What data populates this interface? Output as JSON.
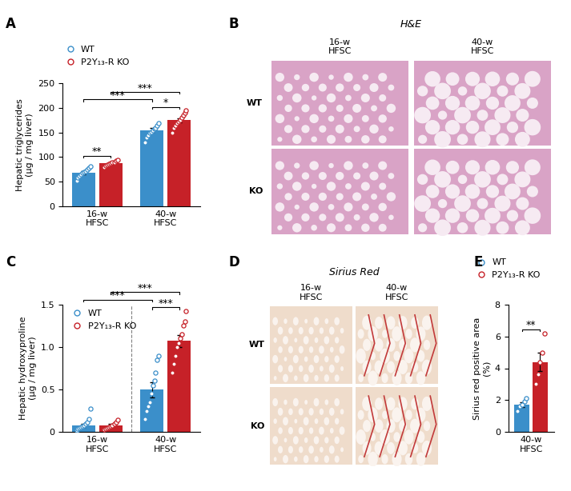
{
  "chart_data": [
    {
      "panel": "A",
      "type": "bar",
      "categories": [
        "16-w\nHFSC",
        "40-w\nHFSC"
      ],
      "y_label": "Hepatic triglycerides\n(μg / mg liver)",
      "ylim": [
        0,
        250
      ],
      "yticks": [
        0,
        50,
        100,
        150,
        200,
        250
      ],
      "legend": "upper left",
      "series": [
        {
          "name": "WT",
          "color": "#3b8fca",
          "values": [
            68,
            155
          ],
          "errors": [
            3,
            4
          ],
          "points": [
            [
              52,
              58,
              62,
              65,
              68,
              70,
              72,
              75,
              78,
              82
            ],
            [
              130,
              140,
              145,
              150,
              152,
              155,
              158,
              160,
              165,
              170
            ]
          ]
        },
        {
          "name": "P2Y₁₃-R KO",
          "color": "#c62128",
          "values": [
            88,
            175
          ],
          "errors": [
            2,
            4
          ],
          "points": [
            [
              80,
              83,
              85,
              86,
              88,
              89,
              90,
              92,
              95
            ],
            [
              150,
              160,
              165,
              170,
              172,
              175,
              180,
              185,
              190,
              195
            ]
          ]
        }
      ],
      "comparisons": [
        {
          "groups": [
            [
              "16-w\nHFSC",
              "WT"
            ],
            [
              "16-w\nHFSC",
              "P2Y₁₃-R KO"
            ]
          ],
          "label": "**"
        },
        {
          "groups": [
            [
              "40-w\nHFSC",
              "WT"
            ],
            [
              "40-w\nHFSC",
              "P2Y₁₃-R KO"
            ]
          ],
          "label": "*"
        },
        {
          "groups": [
            [
              "16-w\nHFSC",
              "WT"
            ],
            [
              "40-w\nHFSC",
              "WT"
            ]
          ],
          "label": "***"
        },
        {
          "groups": [
            [
              "16-w\nHFSC",
              "P2Y₁₃-R KO"
            ],
            [
              "40-w\nHFSC",
              "P2Y₁₃-R KO"
            ]
          ],
          "label": "***"
        }
      ]
    },
    {
      "panel": "B",
      "type": "image",
      "title": "H&E",
      "columns": [
        "16-w\nHFSC",
        "40-w\nHFSC"
      ],
      "rows": [
        "WT",
        "KO"
      ]
    },
    {
      "panel": "C",
      "type": "bar",
      "categories": [
        "16-w\nHFSC",
        "40-w\nHFSC"
      ],
      "y_label": "Hepatic hydroxyproline\n(μg / mg liver)",
      "ylim": [
        0,
        1.5
      ],
      "yticks": [
        0,
        0.5,
        {
          "value": 1.0,
          "label": "1.0"
        },
        1.5
      ],
      "legend": "upper left",
      "series": [
        {
          "name": "WT",
          "color": "#3b8fca",
          "values": [
            0.08,
            0.5
          ],
          "errors": [
            0.02,
            0.09
          ],
          "points": [
            [
              0.02,
              0.04,
              0.05,
              0.06,
              0.07,
              0.08,
              0.1,
              0.12,
              0.15,
              0.28
            ],
            [
              0.15,
              0.25,
              0.3,
              0.35,
              0.45,
              0.55,
              0.6,
              0.7,
              0.85,
              0.9
            ]
          ]
        },
        {
          "name": "P2Y₁₃-R KO",
          "color": "#c62128",
          "values": [
            0.08,
            1.07
          ],
          "errors": [
            0.015,
            0.07
          ],
          "points": [
            [
              0.03,
              0.04,
              0.05,
              0.06,
              0.07,
              0.08,
              0.1,
              0.12,
              0.14
            ],
            [
              0.7,
              0.8,
              0.9,
              1.0,
              1.05,
              1.1,
              1.15,
              1.25,
              1.3,
              1.42
            ]
          ]
        }
      ],
      "comparisons": [
        {
          "groups": [
            [
              "40-w\nHFSC",
              "WT"
            ],
            [
              "40-w\nHFSC",
              "P2Y₁₃-R KO"
            ]
          ],
          "label": "***"
        },
        {
          "groups": [
            [
              "16-w\nHFSC",
              "WT"
            ],
            [
              "40-w\nHFSC",
              "WT"
            ]
          ],
          "label": "***"
        },
        {
          "groups": [
            [
              "16-w\nHFSC",
              "P2Y₁₃-R KO"
            ],
            [
              "40-w\nHFSC",
              "P2Y₁₃-R KO"
            ]
          ],
          "label": "***"
        }
      ]
    },
    {
      "panel": "D",
      "type": "image",
      "title": "Sirius Red",
      "columns": [
        "16-w\nHFSC",
        "40-w\nHFSC"
      ],
      "rows": [
        "WT",
        "KO"
      ]
    },
    {
      "panel": "E",
      "type": "bar",
      "categories": [
        "40-w\nHFSC"
      ],
      "y_label": "Sirius red positive area\n(%)",
      "ylim": [
        0,
        8
      ],
      "yticks": [
        0,
        2,
        4,
        6,
        8
      ],
      "legend": "upper left",
      "series": [
        {
          "name": "WT",
          "color": "#3b8fca",
          "values": [
            1.7
          ],
          "errors": [
            0.15
          ],
          "points": [
            [
              1.3,
              1.6,
              1.7,
              1.9,
              2.1
            ]
          ]
        },
        {
          "name": "P2Y₁₃-R KO",
          "color": "#c62128",
          "values": [
            4.4
          ],
          "errors": [
            0.6
          ],
          "points": [
            [
              3.0,
              3.6,
              4.4,
              5.0,
              6.2
            ]
          ]
        }
      ],
      "comparisons": [
        {
          "groups": [
            [
              "40-w\nHFSC",
              "WT"
            ],
            [
              "40-w\nHFSC",
              "P2Y₁₃-R KO"
            ]
          ],
          "label": "**"
        }
      ]
    }
  ]
}
